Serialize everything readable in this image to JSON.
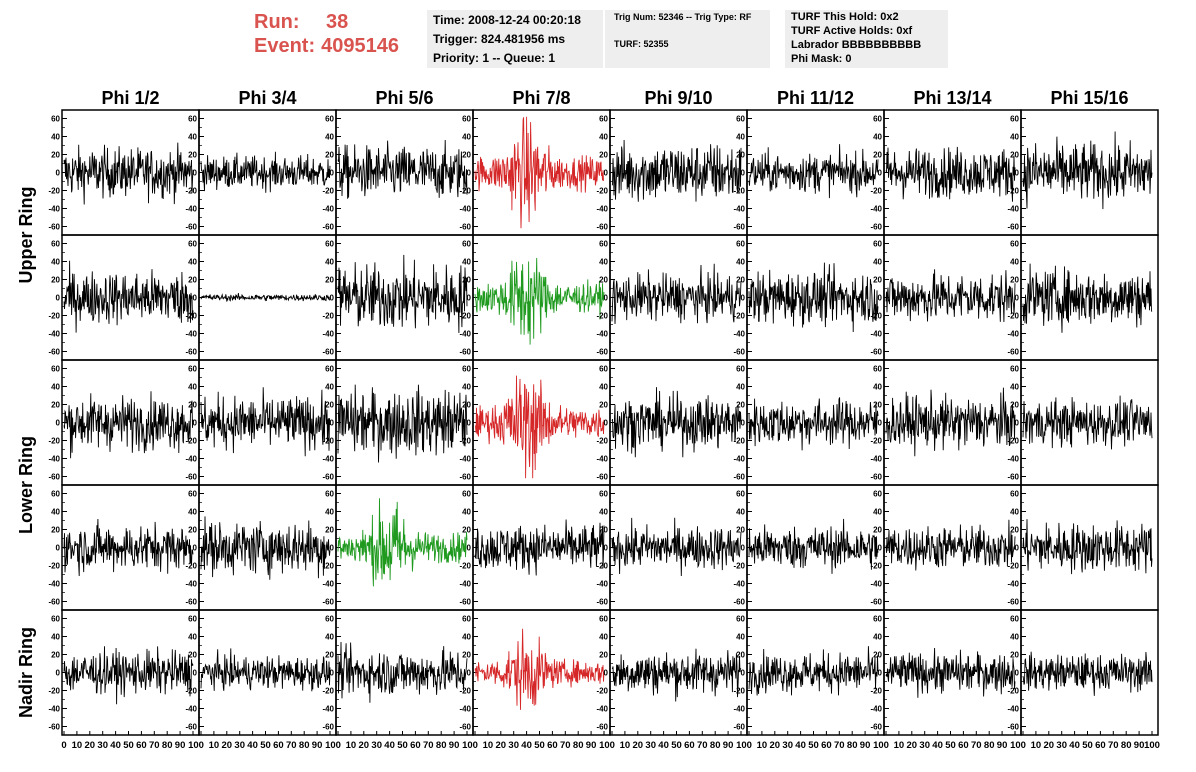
{
  "header": {
    "run_label": "Run:",
    "run_value": "38",
    "event_label": "Event:",
    "event_value": "4095146"
  },
  "info_time": {
    "time": "Time: 2008-12-24 00:20:18",
    "trigger": "Trigger: 824.481956 ms",
    "priority": "Priority: 1 -- Queue: 1"
  },
  "info_trig": {
    "trig": "Trig Num: 52346 -- Trig Type: RF",
    "turf": "TURF: 52355"
  },
  "info_turf": {
    "hold": "TURF This Hold: 0x2",
    "active": "TURF Active Holds: 0xf",
    "labrador": "Labrador BBBBBBBBBB",
    "phimask": "Phi Mask: 0"
  },
  "colors": {
    "normal": "#000000",
    "red": "#d62728",
    "green": "#1f9a1f",
    "header_red": "#d9534f"
  },
  "chart_data": {
    "type": "line",
    "columns": [
      "Phi 1/2",
      "Phi 3/4",
      "Phi 5/6",
      "Phi 7/8",
      "Phi 9/10",
      "Phi 11/12",
      "Phi 13/14",
      "Phi 15/16"
    ],
    "rows": [
      "Upper Ring",
      "Upper Ring",
      "Lower Ring",
      "Lower Ring",
      "Nadir Ring"
    ],
    "row_labels": [
      "Upper Ring",
      "Lower Ring",
      "Nadir Ring"
    ],
    "ylim": [
      -65,
      65
    ],
    "yticks": [
      60,
      40,
      20,
      0,
      -20,
      -40,
      -60
    ],
    "xlim": [
      0,
      100
    ],
    "xticks": [
      0,
      10,
      20,
      30,
      40,
      50,
      60,
      70,
      80,
      90,
      100
    ],
    "xtick_labels_panel": [
      "10",
      "20",
      "30",
      "40",
      "50",
      "60",
      "70",
      "80",
      "90"
    ],
    "xtick_first": "0",
    "xtick_last": "100",
    "samples": 256,
    "panel_amplitude": [
      [
        15,
        10,
        16,
        22,
        18,
        12,
        15,
        18
      ],
      [
        16,
        2,
        20,
        20,
        14,
        16,
        15,
        17
      ],
      [
        16,
        16,
        20,
        22,
        16,
        14,
        16,
        14
      ],
      [
        14,
        16,
        20,
        14,
        13,
        13,
        13,
        15
      ],
      [
        13,
        10,
        14,
        16,
        13,
        12,
        12,
        11
      ]
    ],
    "panel_color": [
      [
        "normal",
        "normal",
        "normal",
        "red",
        "normal",
        "normal",
        "normal",
        "normal"
      ],
      [
        "normal",
        "normal",
        "normal",
        "green",
        "normal",
        "normal",
        "normal",
        "normal"
      ],
      [
        "normal",
        "normal",
        "normal",
        "red",
        "normal",
        "normal",
        "normal",
        "normal"
      ],
      [
        "normal",
        "normal",
        "green",
        "normal",
        "normal",
        "normal",
        "normal",
        "normal"
      ],
      [
        "normal",
        "normal",
        "normal",
        "red",
        "normal",
        "normal",
        "normal",
        "normal"
      ]
    ],
    "panel_burst": [
      [
        false,
        false,
        false,
        true,
        false,
        false,
        false,
        false
      ],
      [
        false,
        false,
        false,
        true,
        false,
        false,
        false,
        false
      ],
      [
        false,
        false,
        false,
        true,
        false,
        false,
        false,
        false
      ],
      [
        false,
        false,
        true,
        false,
        false,
        false,
        false,
        false
      ],
      [
        false,
        false,
        false,
        true,
        false,
        false,
        false,
        false
      ]
    ]
  }
}
